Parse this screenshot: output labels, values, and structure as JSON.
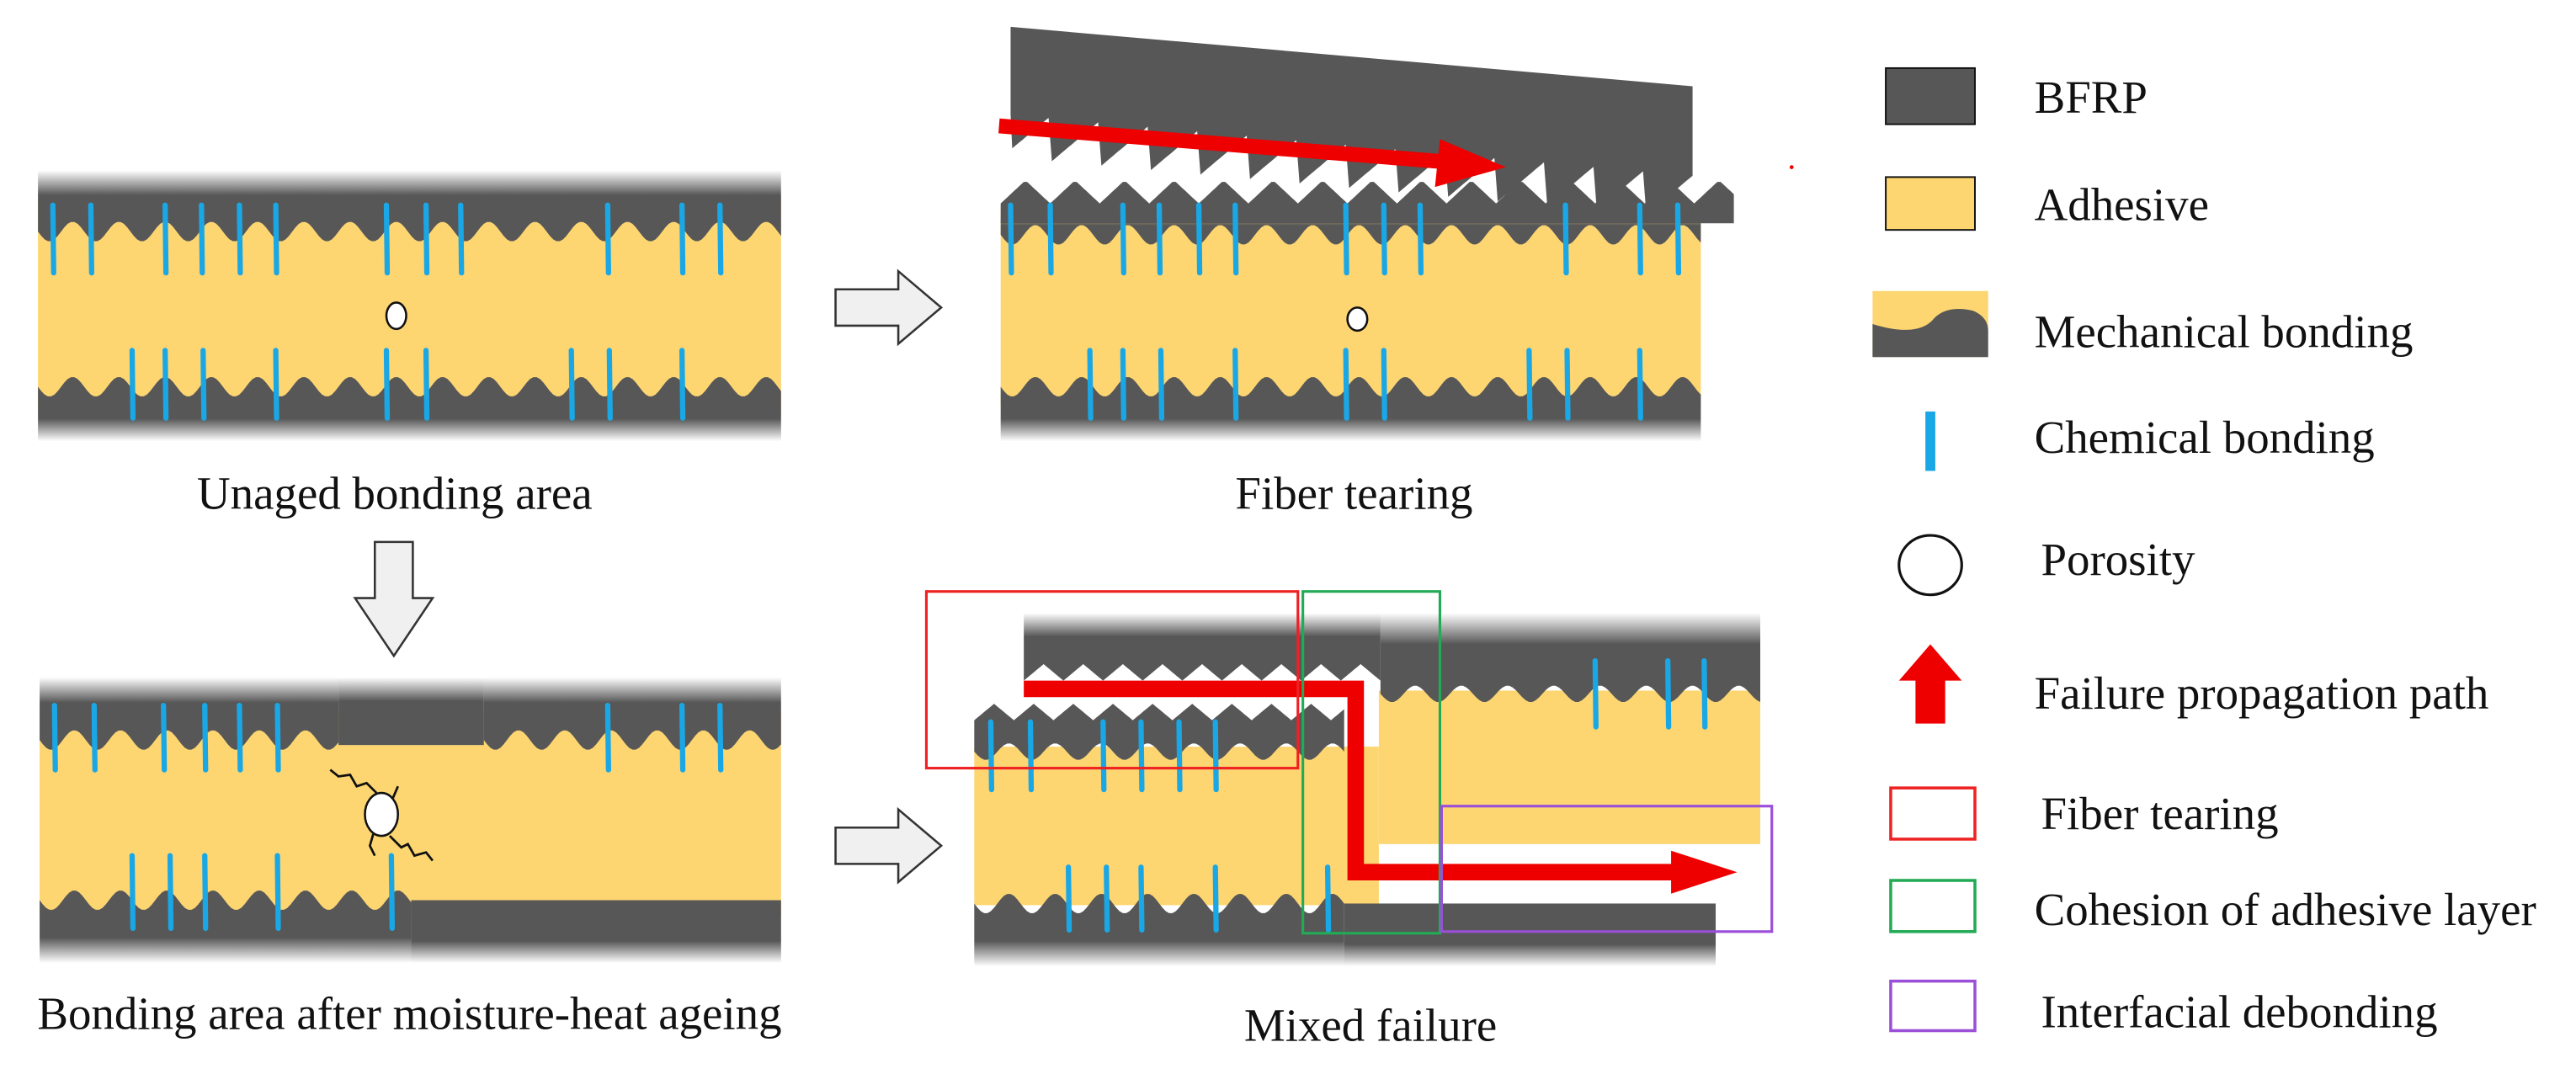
{
  "colors": {
    "bfrp": "#575757",
    "adhesive": "#fdd672",
    "chemical_bond": "#1aa7e6",
    "failure_path": "#ee0000",
    "fiber_tearing_box": "#ee2222",
    "cohesion_box": "#22aa55",
    "interfacial_box": "#9b4fd8",
    "process_arrow_fill": "#f0f0f0"
  },
  "panels": {
    "unaged": {
      "caption": "Unaged bonding area"
    },
    "fiber_tearing": {
      "caption": "Fiber tearing"
    },
    "aged": {
      "caption": "Bonding area after moisture-heat ageing"
    },
    "mixed": {
      "caption": "Mixed failure"
    }
  },
  "legend": {
    "items": [
      {
        "label": "BFRP",
        "icon": "dark-gray-rectangle"
      },
      {
        "label": "Adhesive",
        "icon": "yellow-rectangle"
      },
      {
        "label": "Mechanical bonding",
        "icon": "wavy-interface"
      },
      {
        "label": "Chemical bonding",
        "icon": "blue-bar"
      },
      {
        "label": "Porosity",
        "icon": "circle"
      },
      {
        "label": "Failure propagation path",
        "icon": "red-arrow"
      },
      {
        "label": "Fiber tearing",
        "icon": "red-box"
      },
      {
        "label": "Cohesion of adhesive layer",
        "icon": "green-box"
      },
      {
        "label": "Interfacial debonding",
        "icon": "purple-box"
      }
    ]
  }
}
